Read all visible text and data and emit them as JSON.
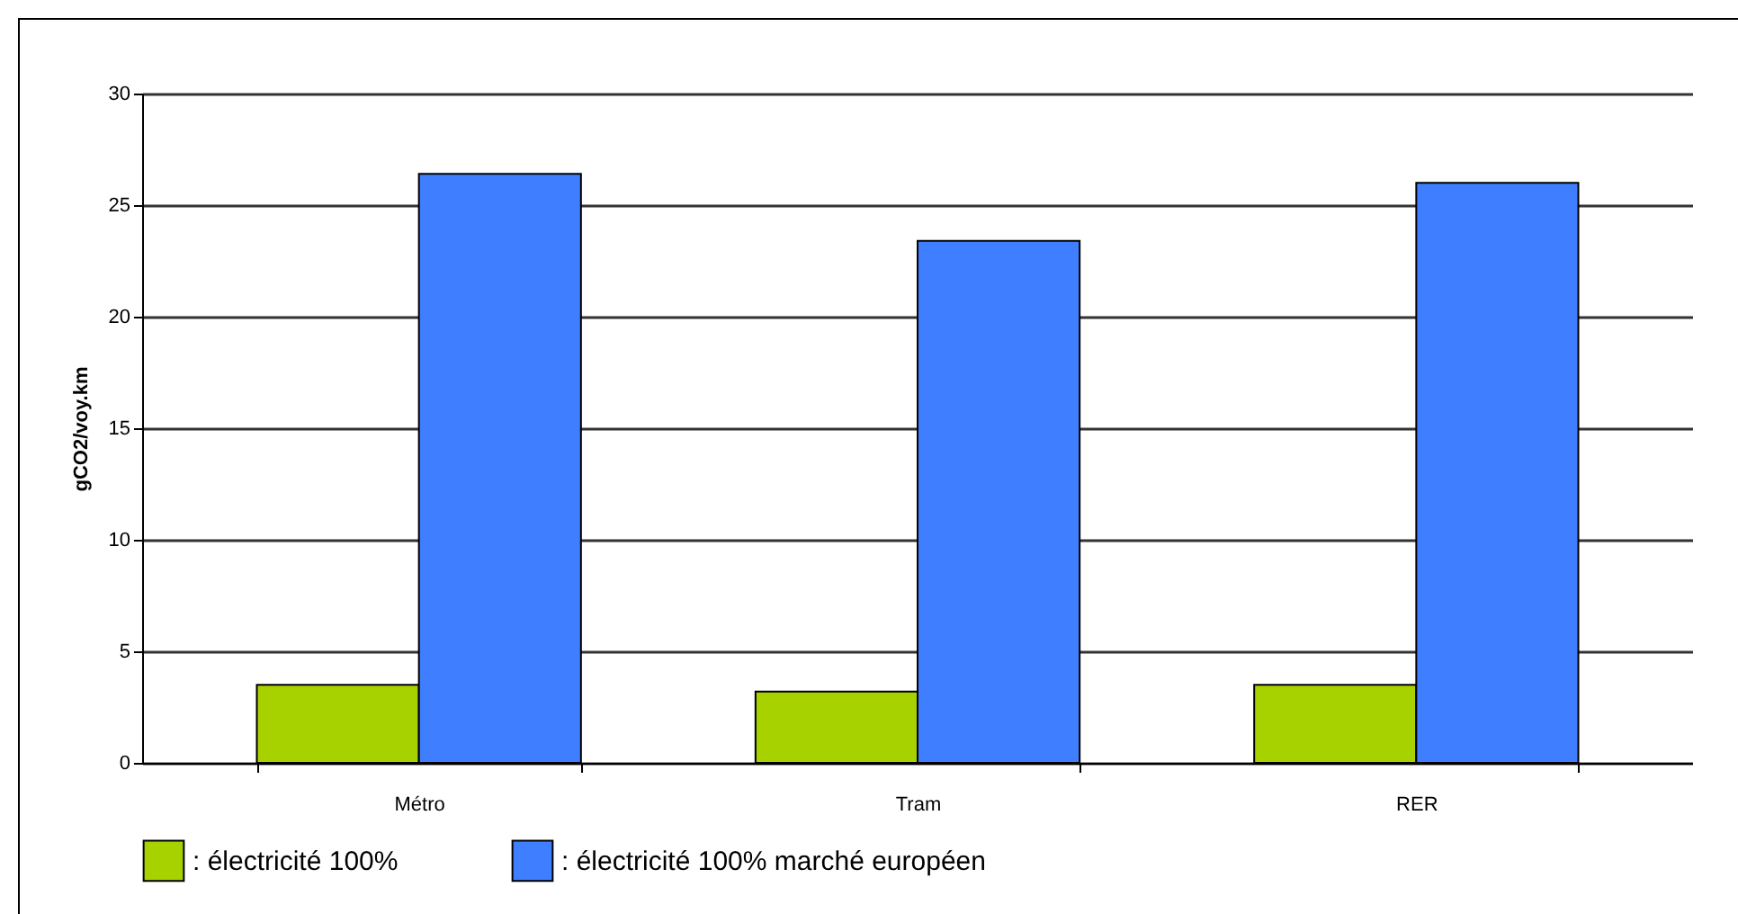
{
  "chart_data": {
    "type": "bar",
    "ylabel": "gCO2/voy.km",
    "categories": [
      "Métro",
      "Tram",
      "RER"
    ],
    "series": [
      {
        "name": ": électricité 100%",
        "color": "#a8d100",
        "values": [
          3.5,
          3.2,
          3.5
        ]
      },
      {
        "name": ": électricité 100% marché européen",
        "color": "#3f7fff",
        "values": [
          26.4,
          23.4,
          26.0
        ]
      }
    ],
    "ylim": [
      0,
      30
    ],
    "yticks": [
      0,
      5,
      10,
      15,
      20,
      25,
      30
    ],
    "grid": "y",
    "legend": "bottom"
  }
}
